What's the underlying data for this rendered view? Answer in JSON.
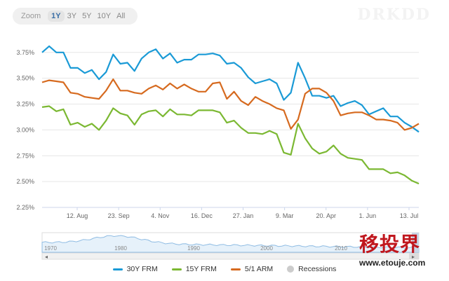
{
  "zoom": {
    "label": "Zoom",
    "options": [
      "1Y",
      "3Y",
      "5Y",
      "10Y",
      "All"
    ],
    "selected": "1Y"
  },
  "watermark_text": "DRKDD",
  "chart_data": {
    "type": "line",
    "x_ticks": [
      "12. Aug",
      "23. Sep",
      "4. Nov",
      "16. Dec",
      "27. Jan",
      "9. Mar",
      "20. Apr",
      "1. Jun",
      "13. Jul"
    ],
    "ylim": [
      2.25,
      3.85
    ],
    "y_ticks": [
      "3.75%",
      "3.50%",
      "3.25%",
      "3.00%",
      "2.75%",
      "2.50%",
      "2.25%"
    ],
    "y_tick_values": [
      3.75,
      3.5,
      3.25,
      3.0,
      2.75,
      2.5,
      2.25
    ],
    "series": [
      {
        "name": "30Y FRM",
        "color": "#1a9ad6",
        "values": [
          3.75,
          3.81,
          3.75,
          3.75,
          3.6,
          3.6,
          3.55,
          3.58,
          3.49,
          3.56,
          3.73,
          3.64,
          3.65,
          3.57,
          3.69,
          3.75,
          3.78,
          3.69,
          3.74,
          3.65,
          3.68,
          3.68,
          3.73,
          3.73,
          3.74,
          3.72,
          3.64,
          3.65,
          3.6,
          3.51,
          3.45,
          3.47,
          3.49,
          3.45,
          3.29,
          3.36,
          3.65,
          3.5,
          3.33,
          3.33,
          3.31,
          3.33,
          3.23,
          3.26,
          3.28,
          3.24,
          3.15,
          3.18,
          3.21,
          3.13,
          3.13,
          3.07,
          3.03,
          2.98
        ]
      },
      {
        "name": "15Y FRM",
        "color": "#7bb832",
        "values": [
          3.22,
          3.23,
          3.18,
          3.2,
          3.05,
          3.07,
          3.03,
          3.06,
          3.0,
          3.09,
          3.21,
          3.16,
          3.14,
          3.05,
          3.15,
          3.18,
          3.19,
          3.13,
          3.2,
          3.15,
          3.15,
          3.14,
          3.19,
          3.19,
          3.19,
          3.17,
          3.07,
          3.09,
          3.02,
          2.97,
          2.97,
          2.96,
          2.99,
          2.96,
          2.78,
          2.76,
          3.06,
          2.92,
          2.82,
          2.77,
          2.79,
          2.85,
          2.77,
          2.73,
          2.72,
          2.71,
          2.62,
          2.62,
          2.62,
          2.58,
          2.59,
          2.56,
          2.51,
          2.48
        ]
      },
      {
        "name": "5/1 ARM",
        "color": "#d66a1f",
        "values": [
          3.46,
          3.48,
          3.47,
          3.46,
          3.36,
          3.35,
          3.32,
          3.31,
          3.3,
          3.38,
          3.49,
          3.38,
          3.38,
          3.36,
          3.35,
          3.4,
          3.43,
          3.39,
          3.45,
          3.4,
          3.44,
          3.4,
          3.37,
          3.37,
          3.45,
          3.46,
          3.3,
          3.37,
          3.28,
          3.24,
          3.32,
          3.28,
          3.25,
          3.21,
          3.19,
          3.01,
          3.1,
          3.35,
          3.4,
          3.4,
          3.36,
          3.28,
          3.14,
          3.16,
          3.17,
          3.17,
          3.14,
          3.1,
          3.1,
          3.09,
          3.07,
          3.0,
          3.02,
          3.06
        ]
      },
      {
        "name": "Recessions",
        "color": "#cccccc",
        "values": []
      }
    ]
  },
  "navigator": {
    "year_labels": [
      "1970",
      "1980",
      "1990",
      "2000",
      "2010"
    ],
    "left_arrow": "◂",
    "right_arrow": "▸"
  },
  "legend": [
    {
      "name": "30Y FRM",
      "color": "#1a9ad6"
    },
    {
      "name": "15Y FRM",
      "color": "#7bb832"
    },
    {
      "name": "5/1 ARM",
      "color": "#d66a1f"
    },
    {
      "name": "Recessions",
      "color": "#cccccc"
    }
  ],
  "brand": {
    "cn": "移投界",
    "url": "www.etouje.com"
  }
}
